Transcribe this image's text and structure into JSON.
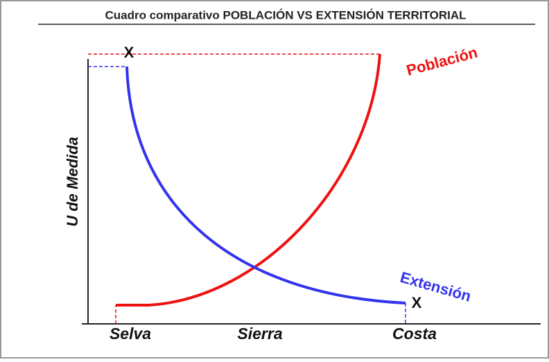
{
  "title": "Cuadro comparativo POBLACIÓN VS EXTENSIÓN TERRITORIAL",
  "y_axis_label": "U de Medida",
  "categories": [
    "Selva",
    "Sierra",
    "Costa"
  ],
  "curves": [
    {
      "name": "Población",
      "color": "#ee1111"
    },
    {
      "name": "Extensión",
      "color": "#3333ee"
    }
  ],
  "markers": [
    "X",
    "X"
  ]
}
